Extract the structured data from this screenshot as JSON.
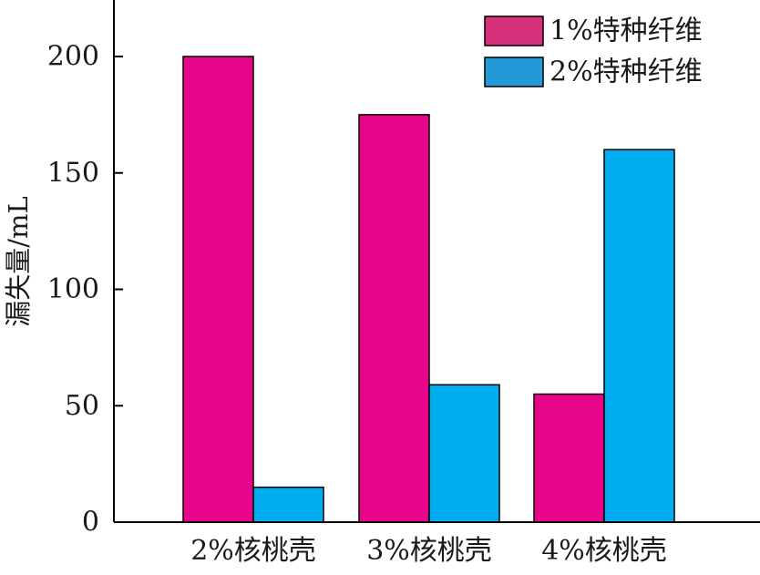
{
  "chart_data": {
    "type": "bar",
    "title": "",
    "xlabel": "",
    "ylabel": "漏失量/mL",
    "categories": [
      "2%核桃壳",
      "3%核桃壳",
      "4%核桃壳"
    ],
    "series": [
      {
        "name": "1%特种纤维",
        "values": [
          200,
          175,
          55
        ],
        "color": "#e8058b"
      },
      {
        "name": "2%特种纤维",
        "values": [
          15,
          59,
          160
        ],
        "color": "#00aeef"
      }
    ],
    "ylim": [
      0,
      220
    ],
    "yticks": [
      0,
      50,
      100,
      150,
      200
    ],
    "grid": false,
    "legend_position": "top-right",
    "legend_swatch_colors": [
      "#d6307a",
      "#2497d6"
    ]
  }
}
